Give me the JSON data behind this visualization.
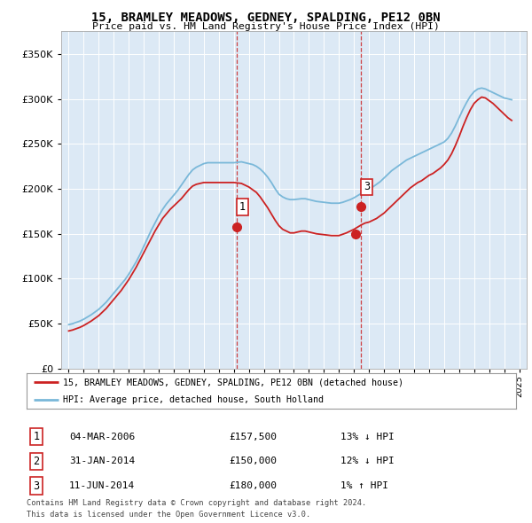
{
  "title": "15, BRAMLEY MEADOWS, GEDNEY, SPALDING, PE12 0BN",
  "subtitle": "Price paid vs. HM Land Registry's House Price Index (HPI)",
  "xlim_start": 1994.5,
  "xlim_end": 2025.5,
  "ylim_min": 0,
  "ylim_max": 375000,
  "yticks": [
    0,
    50000,
    100000,
    150000,
    200000,
    250000,
    300000,
    350000
  ],
  "ytick_labels": [
    "£0",
    "£50K",
    "£100K",
    "£150K",
    "£200K",
    "£250K",
    "£300K",
    "£350K"
  ],
  "hpi_color": "#7ab8d9",
  "price_color": "#cc2222",
  "sale1_date": 2006.17,
  "sale1_price": 157500,
  "sale2_date": 2014.08,
  "sale2_price": 150000,
  "sale3_date": 2014.45,
  "sale3_price": 180000,
  "legend_line1": "15, BRAMLEY MEADOWS, GEDNEY, SPALDING, PE12 0BN (detached house)",
  "legend_line2": "HPI: Average price, detached house, South Holland",
  "table_rows": [
    [
      "1",
      "04-MAR-2006",
      "£157,500",
      "13% ↓ HPI"
    ],
    [
      "2",
      "31-JAN-2014",
      "£150,000",
      "12% ↓ HPI"
    ],
    [
      "3",
      "11-JUN-2014",
      "£180,000",
      "1% ↑ HPI"
    ]
  ],
  "footnote1": "Contains HM Land Registry data © Crown copyright and database right 2024.",
  "footnote2": "This data is licensed under the Open Government Licence v3.0.",
  "plot_bg_color": "#dce9f5",
  "hpi_years": [
    1995.0,
    1995.25,
    1995.5,
    1995.75,
    1996.0,
    1996.25,
    1996.5,
    1996.75,
    1997.0,
    1997.25,
    1997.5,
    1997.75,
    1998.0,
    1998.25,
    1998.5,
    1998.75,
    1999.0,
    1999.25,
    1999.5,
    1999.75,
    2000.0,
    2000.25,
    2000.5,
    2000.75,
    2001.0,
    2001.25,
    2001.5,
    2001.75,
    2002.0,
    2002.25,
    2002.5,
    2002.75,
    2003.0,
    2003.25,
    2003.5,
    2003.75,
    2004.0,
    2004.25,
    2004.5,
    2004.75,
    2005.0,
    2005.25,
    2005.5,
    2005.75,
    2006.0,
    2006.25,
    2006.5,
    2006.75,
    2007.0,
    2007.25,
    2007.5,
    2007.75,
    2008.0,
    2008.25,
    2008.5,
    2008.75,
    2009.0,
    2009.25,
    2009.5,
    2009.75,
    2010.0,
    2010.25,
    2010.5,
    2010.75,
    2011.0,
    2011.25,
    2011.5,
    2011.75,
    2012.0,
    2012.25,
    2012.5,
    2012.75,
    2013.0,
    2013.25,
    2013.5,
    2013.75,
    2014.0,
    2014.25,
    2014.5,
    2014.75,
    2015.0,
    2015.25,
    2015.5,
    2015.75,
    2016.0,
    2016.25,
    2016.5,
    2016.75,
    2017.0,
    2017.25,
    2017.5,
    2017.75,
    2018.0,
    2018.25,
    2018.5,
    2018.75,
    2019.0,
    2019.25,
    2019.5,
    2019.75,
    2020.0,
    2020.25,
    2020.5,
    2020.75,
    2021.0,
    2021.25,
    2021.5,
    2021.75,
    2022.0,
    2022.25,
    2022.5,
    2022.75,
    2023.0,
    2023.25,
    2023.5,
    2023.75,
    2024.0,
    2024.25,
    2024.5
  ],
  "hpi_values": [
    49000,
    50000,
    51500,
    53000,
    55000,
    57500,
    60000,
    63000,
    66000,
    70000,
    74000,
    79000,
    84000,
    89000,
    94000,
    99000,
    105000,
    112000,
    119000,
    127000,
    136000,
    145000,
    154000,
    162000,
    170000,
    177000,
    183000,
    188000,
    193000,
    198000,
    204000,
    210000,
    216000,
    221000,
    224000,
    226000,
    228000,
    229000,
    229000,
    229000,
    229000,
    229000,
    229000,
    229000,
    229000,
    229500,
    230000,
    229000,
    228000,
    227000,
    225000,
    222000,
    218000,
    213000,
    207000,
    200000,
    194000,
    191000,
    189000,
    188000,
    188000,
    188500,
    189000,
    189000,
    188000,
    187000,
    186000,
    185500,
    185000,
    184500,
    184000,
    184000,
    184000,
    185000,
    186500,
    188000,
    190000,
    192500,
    195000,
    197000,
    199000,
    202000,
    205000,
    208000,
    212000,
    216000,
    220000,
    223000,
    226000,
    229000,
    232000,
    234000,
    236000,
    238000,
    240000,
    242000,
    244000,
    246000,
    248000,
    250000,
    252000,
    256000,
    262000,
    270000,
    279000,
    288000,
    296000,
    303000,
    308000,
    311000,
    312000,
    311000,
    309000,
    307000,
    305000,
    303000,
    301000,
    300000,
    299000
  ],
  "price_years": [
    1995.0,
    1995.25,
    1995.5,
    1995.75,
    1996.0,
    1996.25,
    1996.5,
    1996.75,
    1997.0,
    1997.25,
    1997.5,
    1997.75,
    1998.0,
    1998.25,
    1998.5,
    1998.75,
    1999.0,
    1999.25,
    1999.5,
    1999.75,
    2000.0,
    2000.25,
    2000.5,
    2000.75,
    2001.0,
    2001.25,
    2001.5,
    2001.75,
    2002.0,
    2002.25,
    2002.5,
    2002.75,
    2003.0,
    2003.25,
    2003.5,
    2003.75,
    2004.0,
    2004.25,
    2004.5,
    2004.75,
    2005.0,
    2005.25,
    2005.5,
    2005.75,
    2006.0,
    2006.25,
    2006.5,
    2006.75,
    2007.0,
    2007.25,
    2007.5,
    2007.75,
    2008.0,
    2008.25,
    2008.5,
    2008.75,
    2009.0,
    2009.25,
    2009.5,
    2009.75,
    2010.0,
    2010.25,
    2010.5,
    2010.75,
    2011.0,
    2011.25,
    2011.5,
    2011.75,
    2012.0,
    2012.25,
    2012.5,
    2012.75,
    2013.0,
    2013.25,
    2013.5,
    2013.75,
    2014.0,
    2014.25,
    2014.5,
    2014.75,
    2015.0,
    2015.25,
    2015.5,
    2015.75,
    2016.0,
    2016.25,
    2016.5,
    2016.75,
    2017.0,
    2017.25,
    2017.5,
    2017.75,
    2018.0,
    2018.25,
    2018.5,
    2018.75,
    2019.0,
    2019.25,
    2019.5,
    2019.75,
    2020.0,
    2020.25,
    2020.5,
    2020.75,
    2021.0,
    2021.25,
    2021.5,
    2021.75,
    2022.0,
    2022.25,
    2022.5,
    2022.75,
    2023.0,
    2023.25,
    2023.5,
    2023.75,
    2024.0,
    2024.25,
    2024.5
  ],
  "price_values": [
    42000,
    43000,
    44500,
    46000,
    48000,
    50500,
    53000,
    56000,
    59000,
    63000,
    67000,
    72000,
    77000,
    82000,
    87000,
    93000,
    99000,
    106000,
    113000,
    121000,
    129000,
    137000,
    145000,
    153000,
    160000,
    167000,
    172000,
    177000,
    181000,
    185000,
    189000,
    194000,
    199000,
    203000,
    205000,
    206000,
    207000,
    207000,
    207000,
    207000,
    207000,
    207000,
    207000,
    207000,
    207000,
    206500,
    206000,
    204000,
    202000,
    199000,
    196000,
    191000,
    185000,
    179000,
    172000,
    165000,
    159000,
    155000,
    153000,
    151000,
    151000,
    152000,
    153000,
    153000,
    152000,
    151000,
    150000,
    149500,
    149000,
    148500,
    148000,
    148000,
    148000,
    149500,
    151000,
    153000,
    155000,
    157500,
    160000,
    162000,
    163000,
    165000,
    167000,
    170000,
    173000,
    177000,
    181000,
    185000,
    189000,
    193000,
    197000,
    201000,
    204000,
    207000,
    209000,
    212000,
    215000,
    217000,
    220000,
    223000,
    227000,
    232000,
    239000,
    248000,
    258000,
    269000,
    279000,
    288000,
    295000,
    299000,
    302000,
    301000,
    298000,
    295000,
    291000,
    287000,
    283000,
    279000,
    276000
  ]
}
